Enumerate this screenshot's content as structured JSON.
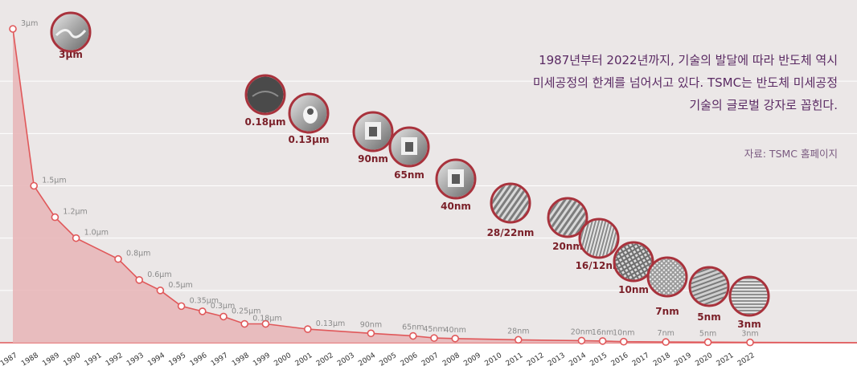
{
  "chart_data": {
    "type": "area",
    "title": "",
    "xlabel": "",
    "ylabel": "",
    "x": [
      "1987",
      "1988",
      "1989",
      "1990",
      "1991",
      "1992",
      "1993",
      "1994",
      "1995",
      "1996",
      "1997",
      "1998",
      "1999",
      "2000",
      "2001",
      "2002",
      "2003",
      "2004",
      "2005",
      "2006",
      "2007",
      "2008",
      "2009",
      "2010",
      "2011",
      "2012",
      "2013",
      "2014",
      "2015",
      "2016",
      "2017",
      "2018",
      "2019",
      "2020",
      "2021",
      "2022"
    ],
    "ylim": [
      0,
      3
    ],
    "grid": true,
    "points": [
      {
        "year": 1987,
        "value": 3.0,
        "label": "3µm"
      },
      {
        "year": 1988,
        "value": 1.5,
        "label": "1.5µm"
      },
      {
        "year": 1989,
        "value": 1.2,
        "label": "1.2µm"
      },
      {
        "year": 1990,
        "value": 1.0,
        "label": "1.0µm"
      },
      {
        "year": 1992,
        "value": 0.8,
        "label": "0.8µm"
      },
      {
        "year": 1993,
        "value": 0.6,
        "label": "0.6µm"
      },
      {
        "year": 1994,
        "value": 0.5,
        "label": "0.5µm"
      },
      {
        "year": 1995,
        "value": 0.35,
        "label": "0.35µm"
      },
      {
        "year": 1996,
        "value": 0.3,
        "label": "0.3µm"
      },
      {
        "year": 1997,
        "value": 0.25,
        "label": "0.25µm"
      },
      {
        "year": 1998,
        "value": 0.18,
        "label": "0.18µm"
      },
      {
        "year": 1999,
        "value": 0.18,
        "label": ""
      },
      {
        "year": 2001,
        "value": 0.13,
        "label": "0.13µm"
      },
      {
        "year": 2004,
        "value": 0.09,
        "label": "90nm"
      },
      {
        "year": 2006,
        "value": 0.065,
        "label": "65nm"
      },
      {
        "year": 2007,
        "value": 0.045,
        "label": "45nm"
      },
      {
        "year": 2008,
        "value": 0.04,
        "label": "40nm"
      },
      {
        "year": 2011,
        "value": 0.028,
        "label": "28nm"
      },
      {
        "year": 2014,
        "value": 0.02,
        "label": "20nm"
      },
      {
        "year": 2015,
        "value": 0.016,
        "label": "16nm"
      },
      {
        "year": 2016,
        "value": 0.01,
        "label": "10nm"
      },
      {
        "year": 2018,
        "value": 0.007,
        "label": "7nm"
      },
      {
        "year": 2020,
        "value": 0.005,
        "label": "5nm"
      },
      {
        "year": 2022,
        "value": 0.003,
        "label": "3nm"
      }
    ],
    "nodes": [
      {
        "label": "3µm",
        "pattern": "profile"
      },
      {
        "label": "0.18µm",
        "pattern": "dark"
      },
      {
        "label": "0.13µm",
        "pattern": "blob"
      },
      {
        "label": "90nm",
        "pattern": "cell"
      },
      {
        "label": "65nm",
        "pattern": "cell"
      },
      {
        "label": "40nm",
        "pattern": "cell"
      },
      {
        "label": "28/22nm",
        "pattern": "stripes"
      },
      {
        "label": "20nm",
        "pattern": "stripes"
      },
      {
        "label": "16/12nm",
        "pattern": "vlines"
      },
      {
        "label": "10nm",
        "pattern": "grid"
      },
      {
        "label": "7nm",
        "pattern": "mesh"
      },
      {
        "label": "5nm",
        "pattern": "fins"
      },
      {
        "label": "3nm",
        "pattern": "hlines"
      }
    ]
  },
  "colors": {
    "line": "#e0585a",
    "area": "#e8b7b9",
    "panel": "#ebe7e7",
    "node_ring": "#a8323c",
    "node_label": "#7a1f28",
    "note": "#5a2a63"
  },
  "annotation": {
    "lines": [
      "1987년부터 2022년까지, 기술의 발달에 따라 반도체 역시",
      "미세공정의 한계를 넘어서고 있다. TSMC는 반도체 미세공정",
      "기술의 글로벌 강자로 꼽힌다."
    ],
    "source": "자료: TSMC 홈페이지"
  }
}
